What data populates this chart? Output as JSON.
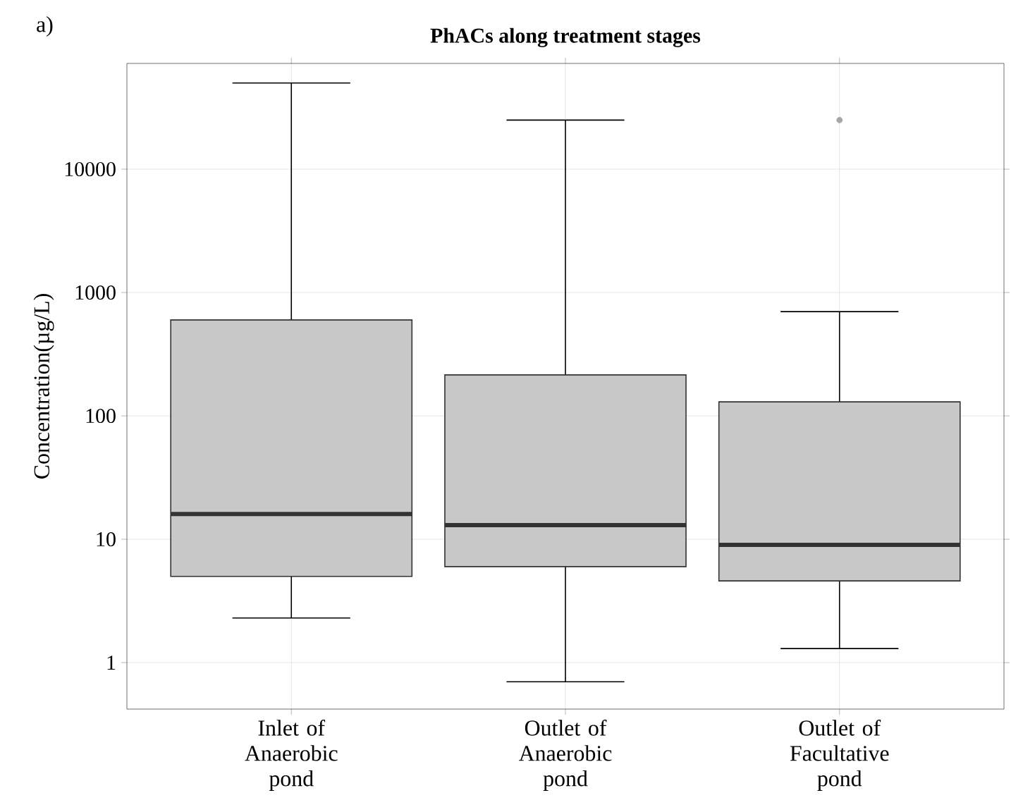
{
  "chart_data": {
    "type": "box",
    "title": "PhACs along treatment stages",
    "ylabel": "Concentration(µg/L)",
    "categories": [
      "Inlet of Anaerobic pond",
      "Outlet of Anaerobic pond",
      "Outlet of Facultative pond"
    ],
    "boxes": [
      {
        "low": 2.3,
        "q1": 5,
        "median": 16,
        "q3": 600,
        "high": 50000
      },
      {
        "low": 0.7,
        "q1": 6,
        "median": 13,
        "q3": 215,
        "high": 25000
      },
      {
        "low": 1.3,
        "q1": 4.6,
        "median": 9,
        "q3": 130,
        "high": 700,
        "outliers": [
          25000
        ]
      }
    ],
    "color": "#c8c8c8",
    "log": "y",
    "ylim": [
      0.42,
      72000
    ],
    "yticks": [
      1,
      10,
      100,
      1000,
      10000
    ],
    "grid": true,
    "annotations": [
      "a)"
    ]
  }
}
